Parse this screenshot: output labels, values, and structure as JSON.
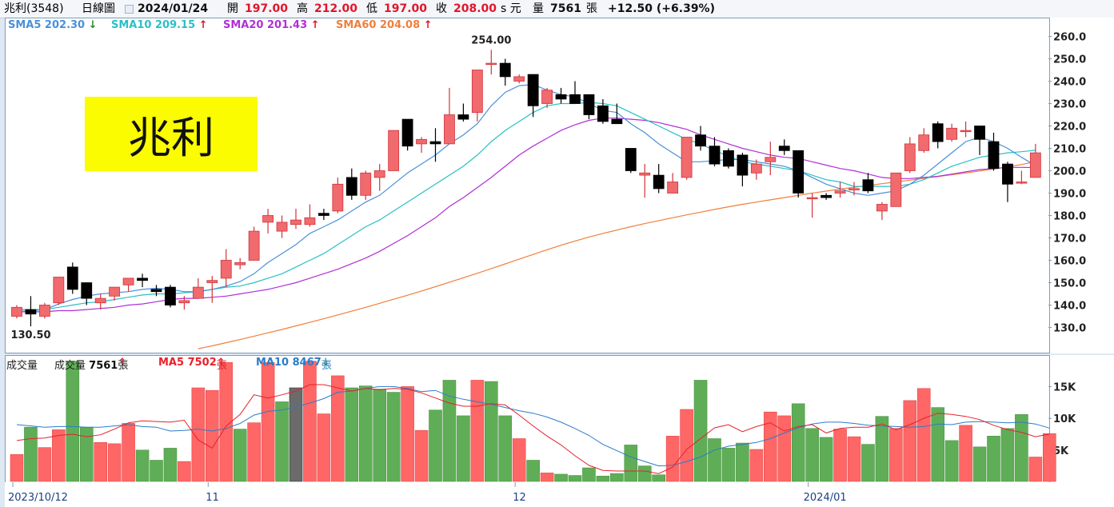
{
  "header": {
    "stock": "兆利(3548)",
    "period": "日線圖",
    "date": "2024/01/24",
    "open_label": "開",
    "open": "197.00",
    "high_label": "高",
    "high": "212.00",
    "low_label": "低",
    "low": "197.00",
    "close_label": "收",
    "close": "208.00",
    "unit": "s 元",
    "volume_label": "量",
    "volume": "7561",
    "volume_unit": "張",
    "change": "+12.50 (+6.39%)"
  },
  "banner": {
    "text": "兆利",
    "color": "#fcfc00"
  },
  "legend": {
    "sma5": "SMA5 202.30",
    "sma5_arrow": "↓",
    "sma10": "SMA10 209.15",
    "sma10_arrow": "↑",
    "sma20": "SMA20 201.43",
    "sma20_arrow": "↑",
    "sma60": "SMA60 204.08",
    "sma60_arrow": "↑"
  },
  "volume_legend": {
    "title": "成交量",
    "vol": "成交量",
    "vol_value": "7561",
    "vol_arrow": "↑",
    "vol_unit": "張",
    "ma5": "MA5 7502",
    "ma5_arrow": "↑",
    "ma5_unit": "張",
    "ma10": "MA10 8467",
    "ma10_arrow": "↓",
    "ma10_unit": "張"
  },
  "colors": {
    "up": "#f06a6e",
    "down": "#000000",
    "vol_up": "#ff6666",
    "vol_down": "#5fae57",
    "sma5": "#4a90d9",
    "sma10": "#29c0c6",
    "sma20": "#b02fd6",
    "sma60": "#f07f3c",
    "vol_ma5": "#e8202a",
    "vol_ma10": "#2b7cc7"
  },
  "chart_data": [
    {
      "type": "candlestick",
      "ylim": [
        120,
        265
      ],
      "y_ticks": [
        "130.0",
        "140.0",
        "150.0",
        "160.0",
        "170.0",
        "180.0",
        "190.0",
        "200.0",
        "210.0",
        "220.0",
        "230.0",
        "240.0",
        "250.0",
        "260.0"
      ],
      "annotations": [
        {
          "label": "254.00",
          "index": 34,
          "value": 254
        },
        {
          "label": "130.50",
          "index": 1,
          "value": 130.5
        }
      ],
      "candles": [
        {
          "o": 135,
          "h": 140,
          "l": 134,
          "c": 139
        },
        {
          "o": 138,
          "h": 144,
          "l": 130.5,
          "c": 136
        },
        {
          "o": 135,
          "h": 141,
          "l": 134,
          "c": 140
        },
        {
          "o": 141,
          "h": 152.5,
          "l": 140,
          "c": 152.5
        },
        {
          "o": 157,
          "h": 159,
          "l": 145,
          "c": 147
        },
        {
          "o": 150,
          "h": 150,
          "l": 140,
          "c": 143
        },
        {
          "o": 141,
          "h": 145,
          "l": 138,
          "c": 143
        },
        {
          "o": 144,
          "h": 148,
          "l": 142,
          "c": 148
        },
        {
          "o": 149,
          "h": 152,
          "l": 146,
          "c": 152
        },
        {
          "o": 152,
          "h": 154,
          "l": 148,
          "c": 151
        },
        {
          "o": 147,
          "h": 149,
          "l": 144,
          "c": 146
        },
        {
          "o": 148,
          "h": 149,
          "l": 139,
          "c": 140
        },
        {
          "o": 141,
          "h": 144,
          "l": 138,
          "c": 142
        },
        {
          "o": 143,
          "h": 152,
          "l": 143,
          "c": 148
        },
        {
          "o": 150,
          "h": 153,
          "l": 141,
          "c": 151
        },
        {
          "o": 152,
          "h": 165,
          "l": 148,
          "c": 160
        },
        {
          "o": 158,
          "h": 161,
          "l": 156,
          "c": 159
        },
        {
          "o": 160,
          "h": 175,
          "l": 160,
          "c": 173
        },
        {
          "o": 177,
          "h": 183,
          "l": 172,
          "c": 180
        },
        {
          "o": 173,
          "h": 180,
          "l": 170,
          "c": 177
        },
        {
          "o": 176,
          "h": 183,
          "l": 174,
          "c": 178
        },
        {
          "o": 176,
          "h": 185,
          "l": 175,
          "c": 179
        },
        {
          "o": 181,
          "h": 183,
          "l": 178,
          "c": 180
        },
        {
          "o": 182,
          "h": 197,
          "l": 181,
          "c": 194
        },
        {
          "o": 197,
          "h": 201,
          "l": 187,
          "c": 189
        },
        {
          "o": 189,
          "h": 200,
          "l": 187,
          "c": 199
        },
        {
          "o": 197,
          "h": 203,
          "l": 191,
          "c": 200
        },
        {
          "o": 200,
          "h": 218,
          "l": 200,
          "c": 218
        },
        {
          "o": 223,
          "h": 223,
          "l": 209,
          "c": 211
        },
        {
          "o": 212,
          "h": 215,
          "l": 208,
          "c": 214
        },
        {
          "o": 213,
          "h": 219,
          "l": 204,
          "c": 212
        },
        {
          "o": 212,
          "h": 237,
          "l": 212,
          "c": 225
        },
        {
          "o": 225,
          "h": 230,
          "l": 222,
          "c": 223
        },
        {
          "o": 226,
          "h": 245,
          "l": 222,
          "c": 245
        },
        {
          "o": 248,
          "h": 254,
          "l": 243,
          "c": 248
        },
        {
          "o": 248,
          "h": 250,
          "l": 238,
          "c": 242
        },
        {
          "o": 240,
          "h": 243,
          "l": 239,
          "c": 242
        },
        {
          "o": 243,
          "h": 243,
          "l": 224,
          "c": 229
        },
        {
          "o": 230,
          "h": 237,
          "l": 228,
          "c": 236
        },
        {
          "o": 234,
          "h": 237,
          "l": 230,
          "c": 232
        },
        {
          "o": 234,
          "h": 240,
          "l": 230,
          "c": 230
        },
        {
          "o": 234,
          "h": 234,
          "l": 223,
          "c": 225
        },
        {
          "o": 229,
          "h": 232,
          "l": 221,
          "c": 222
        },
        {
          "o": 223,
          "h": 230,
          "l": 221,
          "c": 221
        },
        {
          "o": 210,
          "h": 210,
          "l": 199,
          "c": 200
        },
        {
          "o": 198,
          "h": 203,
          "l": 188,
          "c": 199
        },
        {
          "o": 198,
          "h": 203,
          "l": 190,
          "c": 192
        },
        {
          "o": 190,
          "h": 199,
          "l": 190,
          "c": 195
        },
        {
          "o": 197,
          "h": 215,
          "l": 196,
          "c": 215
        },
        {
          "o": 216,
          "h": 220,
          "l": 209,
          "c": 211
        },
        {
          "o": 211,
          "h": 215,
          "l": 202,
          "c": 203
        },
        {
          "o": 209,
          "h": 210,
          "l": 201,
          "c": 202
        },
        {
          "o": 207,
          "h": 208,
          "l": 193,
          "c": 198
        },
        {
          "o": 199,
          "h": 205,
          "l": 196,
          "c": 203
        },
        {
          "o": 204,
          "h": 213,
          "l": 198,
          "c": 206
        },
        {
          "o": 211,
          "h": 214,
          "l": 207,
          "c": 209
        },
        {
          "o": 209,
          "h": 209,
          "l": 188,
          "c": 190
        },
        {
          "o": 188,
          "h": 190,
          "l": 179,
          "c": 188
        },
        {
          "o": 189,
          "h": 190,
          "l": 187,
          "c": 188
        },
        {
          "o": 190,
          "h": 195,
          "l": 188,
          "c": 191
        },
        {
          "o": 192,
          "h": 195,
          "l": 189,
          "c": 192
        },
        {
          "o": 196,
          "h": 199,
          "l": 190,
          "c": 191
        },
        {
          "o": 182,
          "h": 186,
          "l": 178,
          "c": 185
        },
        {
          "o": 184,
          "h": 199,
          "l": 184,
          "c": 199
        },
        {
          "o": 200,
          "h": 215,
          "l": 199,
          "c": 212
        },
        {
          "o": 209,
          "h": 219,
          "l": 208,
          "c": 216
        },
        {
          "o": 221,
          "h": 222,
          "l": 210,
          "c": 213
        },
        {
          "o": 214,
          "h": 221,
          "l": 213,
          "c": 219
        },
        {
          "o": 218,
          "h": 222,
          "l": 215,
          "c": 218
        },
        {
          "o": 220,
          "h": 220,
          "l": 207,
          "c": 214
        },
        {
          "o": 213,
          "h": 217,
          "l": 200,
          "c": 201
        },
        {
          "o": 203,
          "h": 204,
          "l": 186,
          "c": 194
        },
        {
          "o": 195,
          "h": 200,
          "l": 194,
          "c": 195
        },
        {
          "o": 197,
          "h": 212,
          "l": 197,
          "c": 208
        }
      ],
      "sma5": [
        137,
        137.5,
        138,
        140.5,
        142.5,
        144,
        145,
        145.5,
        146,
        147,
        147.5,
        147,
        146,
        146,
        147,
        148.5,
        150.5,
        154,
        159,
        163,
        167,
        172,
        175,
        178,
        182,
        186,
        189,
        194,
        199,
        203,
        207,
        212,
        216,
        221,
        229,
        235,
        238,
        238.5,
        236,
        234,
        233,
        230,
        227,
        226,
        221,
        217,
        212,
        208,
        204,
        204,
        204.5,
        205,
        205,
        204,
        203,
        202,
        200,
        197,
        194,
        192,
        190,
        189,
        190,
        191,
        194,
        198,
        203,
        208,
        213,
        215,
        213,
        210,
        206,
        202.3
      ],
      "sma10": [
        138,
        138,
        138,
        139,
        140,
        141,
        141.5,
        142.5,
        143.5,
        144.5,
        145,
        145,
        145.5,
        146,
        147,
        148,
        148.5,
        150,
        152,
        154,
        157,
        160,
        163,
        167,
        171,
        175,
        178,
        182,
        186,
        190,
        194,
        198,
        202,
        207,
        213,
        218,
        222,
        226,
        229,
        230,
        230,
        230.5,
        230,
        229,
        226,
        223,
        220,
        217,
        214,
        212,
        209,
        206.5,
        204,
        203,
        202,
        201,
        200,
        198,
        196,
        195,
        193,
        193,
        193,
        193,
        194,
        196,
        199,
        202,
        204,
        206,
        207,
        208,
        208.5,
        209.15
      ],
      "sma20": [
        137,
        137,
        137,
        137.5,
        137.5,
        138,
        138.5,
        139,
        140,
        140.5,
        141.5,
        142.5,
        143,
        143,
        143.5,
        144,
        145,
        146,
        147,
        148.5,
        150,
        152,
        154,
        156,
        158.5,
        161,
        164,
        167.5,
        171,
        175,
        179,
        184,
        188,
        192.5,
        197,
        202,
        207,
        211,
        214.5,
        218,
        220.5,
        222.5,
        223.5,
        223.5,
        223,
        222.5,
        221.5,
        220,
        218.5,
        216,
        214,
        212,
        210,
        208.5,
        207,
        206,
        205.5,
        204,
        202.5,
        201,
        200,
        198.5,
        197,
        196.5,
        196.5,
        197,
        197.5,
        198.5,
        199.5,
        200.5,
        201,
        201.5,
        201.5,
        201.43
      ],
      "sma60": [
        null,
        null,
        null,
        null,
        null,
        null,
        null,
        null,
        null,
        null,
        null,
        null,
        null,
        120.5,
        121.8,
        123.2,
        124.6,
        126.1,
        127.6,
        129.1,
        130.7,
        132.3,
        133.9,
        135.6,
        137.3,
        139,
        140.8,
        142.6,
        144.4,
        146.3,
        148.2,
        150.2,
        152.2,
        154.2,
        156.3,
        158.4,
        160.5,
        162.6,
        164.7,
        166.7,
        168.6,
        170.4,
        172,
        173.5,
        175,
        176.4,
        177.7,
        179,
        180.3,
        181.5,
        182.7,
        183.9,
        185,
        186,
        187,
        188,
        189,
        190,
        190.9,
        191.8,
        192.6,
        193.4,
        194.2,
        195,
        195.8,
        196.6,
        197.4,
        198.2,
        199,
        199.9,
        200.8,
        201.7,
        202.8,
        204.08
      ]
    },
    {
      "type": "bar",
      "title": "成交量",
      "ylim": [
        0,
        20000
      ],
      "y_ticks": [
        "5K",
        "10K",
        "15K"
      ],
      "values": [
        4300,
        8600,
        5400,
        8200,
        19000,
        8600,
        6200,
        6000,
        9200,
        5000,
        3400,
        5300,
        3200,
        14800,
        14400,
        18800,
        8300,
        9300,
        18800,
        12600,
        14800,
        19000,
        10700,
        16700,
        14800,
        15100,
        14600,
        14100,
        15000,
        8100,
        11300,
        16000,
        10400,
        16000,
        15800,
        10400,
        6800,
        3400,
        1400,
        1200,
        1000,
        2200,
        900,
        1300,
        5800,
        2500,
        1100,
        7200,
        11400,
        16000,
        6800,
        5300,
        6100,
        5100,
        11000,
        10400,
        12300,
        8400,
        7000,
        8300,
        7100,
        5900,
        10300,
        8400,
        12800,
        14700,
        11700,
        6500,
        8900,
        5500,
        7200,
        8400,
        10600,
        3900,
        7600
      ],
      "up": [
        1,
        0,
        1,
        1,
        0,
        0,
        1,
        1,
        1,
        0,
        0,
        0,
        1,
        1,
        1,
        1,
        0,
        1,
        1,
        0,
        1,
        1,
        1,
        1,
        0,
        0,
        0,
        0,
        1,
        1,
        0,
        0,
        0,
        1,
        0,
        0,
        1,
        0,
        1,
        0,
        0,
        0,
        0,
        0,
        0,
        0,
        0,
        1,
        1,
        0,
        0,
        0,
        0,
        1,
        1,
        1,
        0,
        0,
        0,
        1,
        1,
        0,
        0,
        1,
        1,
        1,
        0,
        0,
        1,
        0,
        0,
        0,
        0,
        1,
        1
      ],
      "ma5": [
        6500,
        6800,
        6900,
        7300,
        7500,
        7100,
        7400,
        8300,
        9300,
        9600,
        9500,
        9400,
        9700,
        6600,
        5300,
        8800,
        10600,
        13700,
        13200,
        13700,
        14300,
        15300,
        15300,
        14800,
        14300,
        14700,
        14500,
        14700,
        14600,
        14000,
        13200,
        12400,
        11900,
        11900,
        12300,
        12100,
        10500,
        8800,
        7200,
        5800,
        4100,
        2600,
        1800,
        1700,
        1700,
        1700,
        1300,
        2300,
        5100,
        6800,
        8500,
        9000,
        7900,
        8700,
        9300,
        8000,
        8700,
        9000,
        7700,
        8400,
        8600,
        8600,
        9100,
        8200,
        9000,
        10000,
        10800,
        10600,
        10300,
        9800,
        8900,
        8200,
        7800,
        7100,
        7502
      ],
      "ma10": [
        9000,
        8800,
        8600,
        8700,
        8700,
        8600,
        8600,
        8800,
        9000,
        8700,
        8600,
        8000,
        8100,
        8300,
        8000,
        8400,
        9200,
        10500,
        11100,
        11300,
        11800,
        12400,
        13100,
        14100,
        14300,
        14700,
        15000,
        15000,
        14700,
        14200,
        14400,
        13500,
        13000,
        12600,
        12200,
        11700,
        11200,
        10800,
        10200,
        9400,
        8400,
        7300,
        5900,
        4900,
        3900,
        3200,
        2500,
        2600,
        3200,
        3900,
        5000,
        5600,
        5900,
        6200,
        6800,
        7700,
        8500,
        9100,
        9400,
        9400,
        9200,
        8900,
        8800,
        8700,
        8600,
        8700,
        9100,
        9000,
        9400,
        9500,
        9400,
        9300,
        9400,
        9100,
        8467
      ]
    }
  ],
  "date_axis": {
    "labels": [
      {
        "text": "2023/10/12",
        "index": 0
      },
      {
        "text": "11",
        "index": 14
      },
      {
        "text": "12",
        "index": 36
      },
      {
        "text": "2024/01",
        "index": 57
      }
    ]
  }
}
